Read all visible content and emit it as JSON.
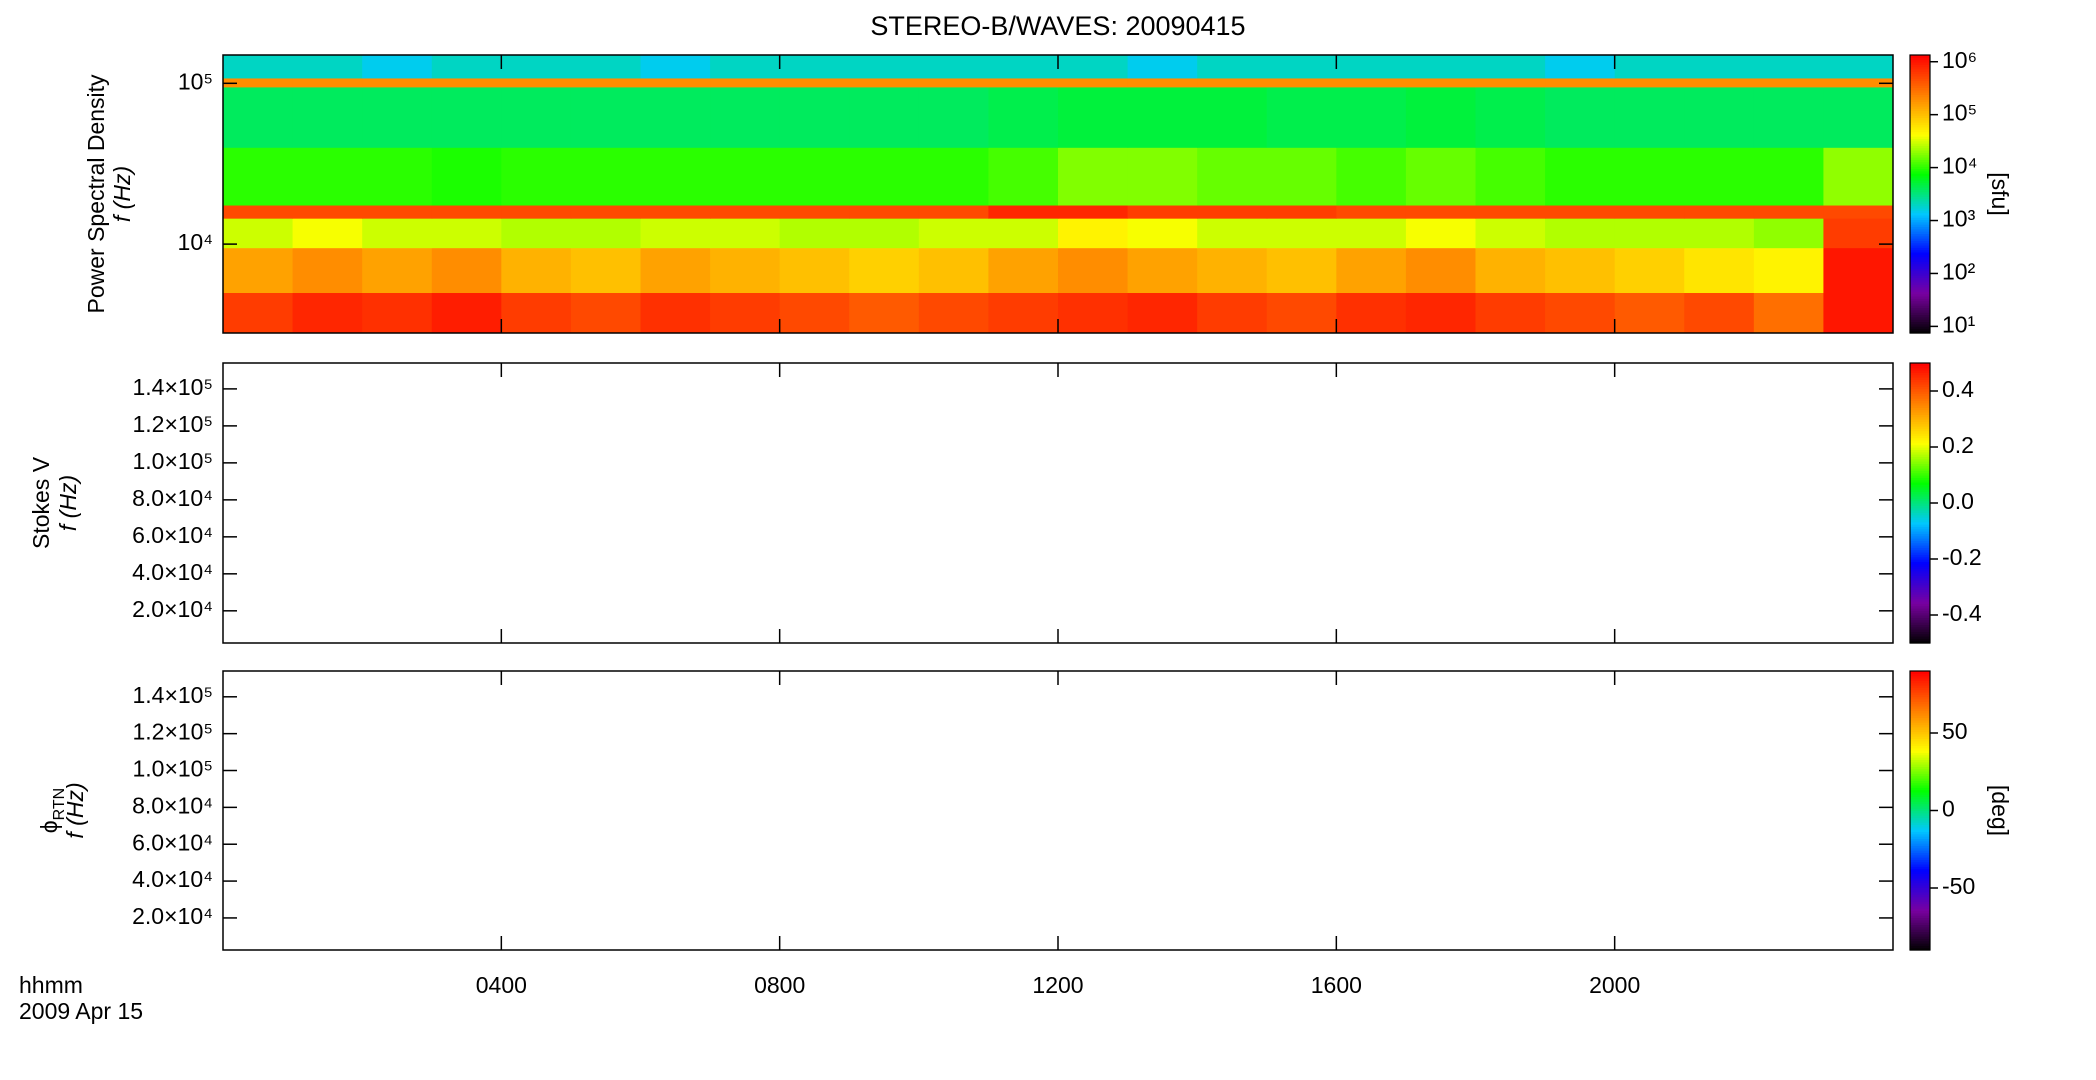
{
  "chart_data": [
    {
      "type": "spectrogram",
      "title": "STEREO-B/WAVES: 20090415",
      "ylabel": "Power Spectral Density",
      "yunit": "f (Hz)",
      "xlim": [
        0,
        24
      ],
      "xticks": [
        4,
        8,
        12,
        16,
        20
      ],
      "ylog": true,
      "ylim": [
        2800,
        150000
      ],
      "yticks": [
        {
          "value": 10000,
          "label": "10⁴"
        },
        {
          "value": 100000,
          "label": "10⁵"
        }
      ],
      "x_edges": [
        0,
        1,
        2,
        3,
        4,
        5,
        6,
        7,
        8,
        9,
        10,
        11,
        12,
        13,
        14,
        15,
        16,
        17,
        18,
        19,
        20,
        21,
        22,
        23,
        24
      ],
      "y_edges": [
        2800,
        5000,
        9500,
        14500,
        17500,
        40000,
        95000,
        108000,
        150000
      ],
      "values": [
        [
          600000,
          800000,
          700000,
          900000,
          600000,
          500000,
          700000,
          600000,
          500000,
          400000,
          500000,
          600000,
          700000,
          800000,
          600000,
          500000,
          700000,
          800000,
          600000,
          500000,
          400000,
          500000,
          300000,
          1000000
        ],
        [
          150000,
          200000,
          150000,
          200000,
          120000,
          100000,
          150000,
          120000,
          100000,
          80000,
          100000,
          150000,
          200000,
          150000,
          120000,
          100000,
          150000,
          200000,
          120000,
          100000,
          80000,
          60000,
          50000,
          1000000
        ],
        [
          30000,
          40000,
          30000,
          30000,
          25000,
          25000,
          30000,
          30000,
          25000,
          25000,
          30000,
          30000,
          50000,
          40000,
          30000,
          30000,
          30000,
          40000,
          30000,
          25000,
          25000,
          25000,
          20000,
          600000
        ],
        [
          500000,
          500000,
          500000,
          500000,
          500000,
          500000,
          500000,
          500000,
          500000,
          500000,
          500000,
          800000,
          800000,
          600000,
          600000,
          600000,
          500000,
          500000,
          500000,
          500000,
          500000,
          500000,
          500000,
          500000
        ],
        [
          10000,
          10000,
          10000,
          9000,
          10000,
          10000,
          10000,
          10000,
          10000,
          10000,
          10000,
          12000,
          18000,
          18000,
          15000,
          15000,
          12000,
          15000,
          12000,
          10000,
          10000,
          10000,
          10000,
          20000
        ],
        [
          4000,
          4000,
          4000,
          4000,
          4000,
          4000,
          4000,
          4000,
          4000,
          4000,
          4000,
          4500,
          5000,
          5000,
          5000,
          4500,
          4500,
          5000,
          4500,
          4000,
          4000,
          4000,
          4000,
          4000
        ],
        [
          200000,
          200000,
          200000,
          200000,
          200000,
          200000,
          200000,
          200000,
          200000,
          200000,
          200000,
          200000,
          200000,
          200000,
          200000,
          200000,
          200000,
          200000,
          200000,
          200000,
          200000,
          200000,
          200000,
          200000
        ],
        [
          2000,
          2000,
          1500,
          2000,
          2000,
          2000,
          1500,
          2000,
          2000,
          2000,
          2000,
          2000,
          2000,
          1500,
          2000,
          2000,
          2000,
          2000,
          2000,
          1500,
          2000,
          2000,
          2000,
          2000
        ]
      ],
      "colorbar": {
        "log": true,
        "lim": [
          7.5,
          1340000
        ],
        "label": "[sfu]",
        "ticks": [
          {
            "value": 10,
            "label": "10¹"
          },
          {
            "value": 100,
            "label": "10²"
          },
          {
            "value": 1000,
            "label": "10³"
          },
          {
            "value": 10000,
            "label": "10⁴"
          },
          {
            "value": 100000,
            "label": "10⁵"
          },
          {
            "value": 1000000,
            "label": "10⁶"
          }
        ]
      },
      "colormap": [
        "#000000",
        "#7800a0",
        "#0000ff",
        "#00c8ff",
        "#00ff00",
        "#ffff00",
        "#ff8000",
        "#ff0000"
      ]
    },
    {
      "type": "spectrogram",
      "ylabel": "Stokes V",
      "yunit": "f (Hz)",
      "xlim": [
        0,
        24
      ],
      "xticks": [
        4,
        8,
        12,
        16,
        20
      ],
      "ylim": [
        2600,
        154000
      ],
      "yticks": [
        {
          "value": 20000,
          "label": "2.0×10⁴"
        },
        {
          "value": 40000,
          "label": "4.0×10⁴"
        },
        {
          "value": 60000,
          "label": "6.0×10⁴"
        },
        {
          "value": 80000,
          "label": "8.0×10⁴"
        },
        {
          "value": 100000,
          "label": "1.0×10⁵"
        },
        {
          "value": 120000,
          "label": "1.2×10⁵"
        },
        {
          "value": 140000,
          "label": "1.4×10⁵"
        }
      ],
      "colorbar": {
        "lim": [
          -0.5,
          0.5
        ],
        "ticks": [
          -0.4,
          -0.2,
          {
            "value": 0,
            "label": "0.0"
          },
          0.2,
          0.4
        ]
      },
      "colormap": [
        "#000000",
        "#7800a0",
        "#0000ff",
        "#00c8ff",
        "#00ff00",
        "#ffff00",
        "#ff8000",
        "#ff0000"
      ]
    },
    {
      "type": "spectrogram",
      "ylabel_symbol": "ϕ",
      "ylabel_subscript": "RTN",
      "yunit": "f (Hz)",
      "xlim": [
        0,
        24
      ],
      "xticks": [
        {
          "value": 4,
          "label": "0400"
        },
        {
          "value": 8,
          "label": "0800"
        },
        {
          "value": 12,
          "label": "1200"
        },
        {
          "value": 16,
          "label": "1600"
        },
        {
          "value": 20,
          "label": "2000"
        }
      ],
      "xlabel": "hhmm",
      "xlabel_date": "2009 Apr 15",
      "ylim": [
        2600,
        154000
      ],
      "yticks": [
        {
          "value": 20000,
          "label": "2.0×10⁴"
        },
        {
          "value": 40000,
          "label": "4.0×10⁴"
        },
        {
          "value": 60000,
          "label": "6.0×10⁴"
        },
        {
          "value": 80000,
          "label": "8.0×10⁴"
        },
        {
          "value": 100000,
          "label": "1.0×10⁵"
        },
        {
          "value": 120000,
          "label": "1.2×10⁵"
        },
        {
          "value": 140000,
          "label": "1.4×10⁵"
        }
      ],
      "colorbar": {
        "lim": [
          -90,
          90
        ],
        "ticks": [
          -50,
          0,
          50
        ],
        "label": "[deg]"
      },
      "colormap": [
        "#000000",
        "#7800a0",
        "#0000ff",
        "#00c8ff",
        "#00ff00",
        "#ffff00",
        "#ff8000",
        "#ff0000"
      ]
    }
  ]
}
